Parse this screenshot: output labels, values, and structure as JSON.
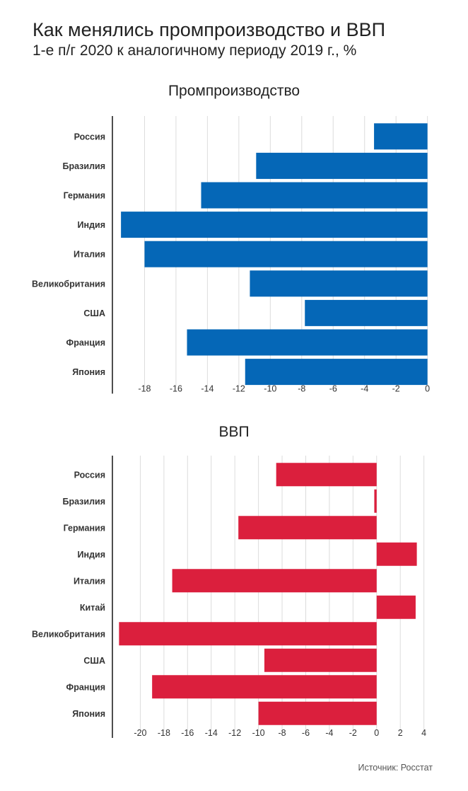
{
  "header": {
    "title": "Как менялись промпроизводство и ВВП",
    "subtitle": "1-е п/г 2020 к аналогичному периоду 2019 г., %"
  },
  "source": "Источник: Росстат",
  "colors": {
    "industry_bar": "#0567b7",
    "gdp_bar": "#db1f3d",
    "grid": "#dcdcdc",
    "axis": "#222222"
  },
  "chart_data": [
    {
      "type": "bar",
      "orientation": "horizontal",
      "title": "Промпроизводство",
      "categories": [
        "Россия",
        "Бразилия",
        "Германия",
        "Индия",
        "Италия",
        "Великобритания",
        "США",
        "Франция",
        "Япония"
      ],
      "values": [
        -3.4,
        -10.9,
        -14.4,
        -19.5,
        -18.0,
        -11.3,
        -7.8,
        -15.3,
        -11.6
      ],
      "xlim": [
        -20,
        0.6
      ],
      "xticks": [
        -18,
        -16,
        -14,
        -12,
        -10,
        -8,
        -6,
        -4,
        -2,
        0
      ],
      "grid": true,
      "bar_color": "#0567b7"
    },
    {
      "type": "bar",
      "orientation": "horizontal",
      "title": "ВВП",
      "categories": [
        "Россия",
        "Бразилия",
        "Германия",
        "Индия",
        "Италия",
        "Китай",
        "Великобритания",
        "США",
        "Франция",
        "Япония"
      ],
      "values": [
        -8.5,
        -0.2,
        -11.7,
        3.4,
        -17.3,
        3.3,
        -21.8,
        -9.5,
        -19.0,
        -10.0
      ],
      "xlim": [
        -22.3,
        4.5
      ],
      "xticks": [
        -20,
        -18,
        -16,
        -14,
        -12,
        -10,
        -8,
        -6,
        -4,
        -2,
        0,
        2,
        4
      ],
      "grid": true,
      "bar_color": "#db1f3d"
    }
  ]
}
